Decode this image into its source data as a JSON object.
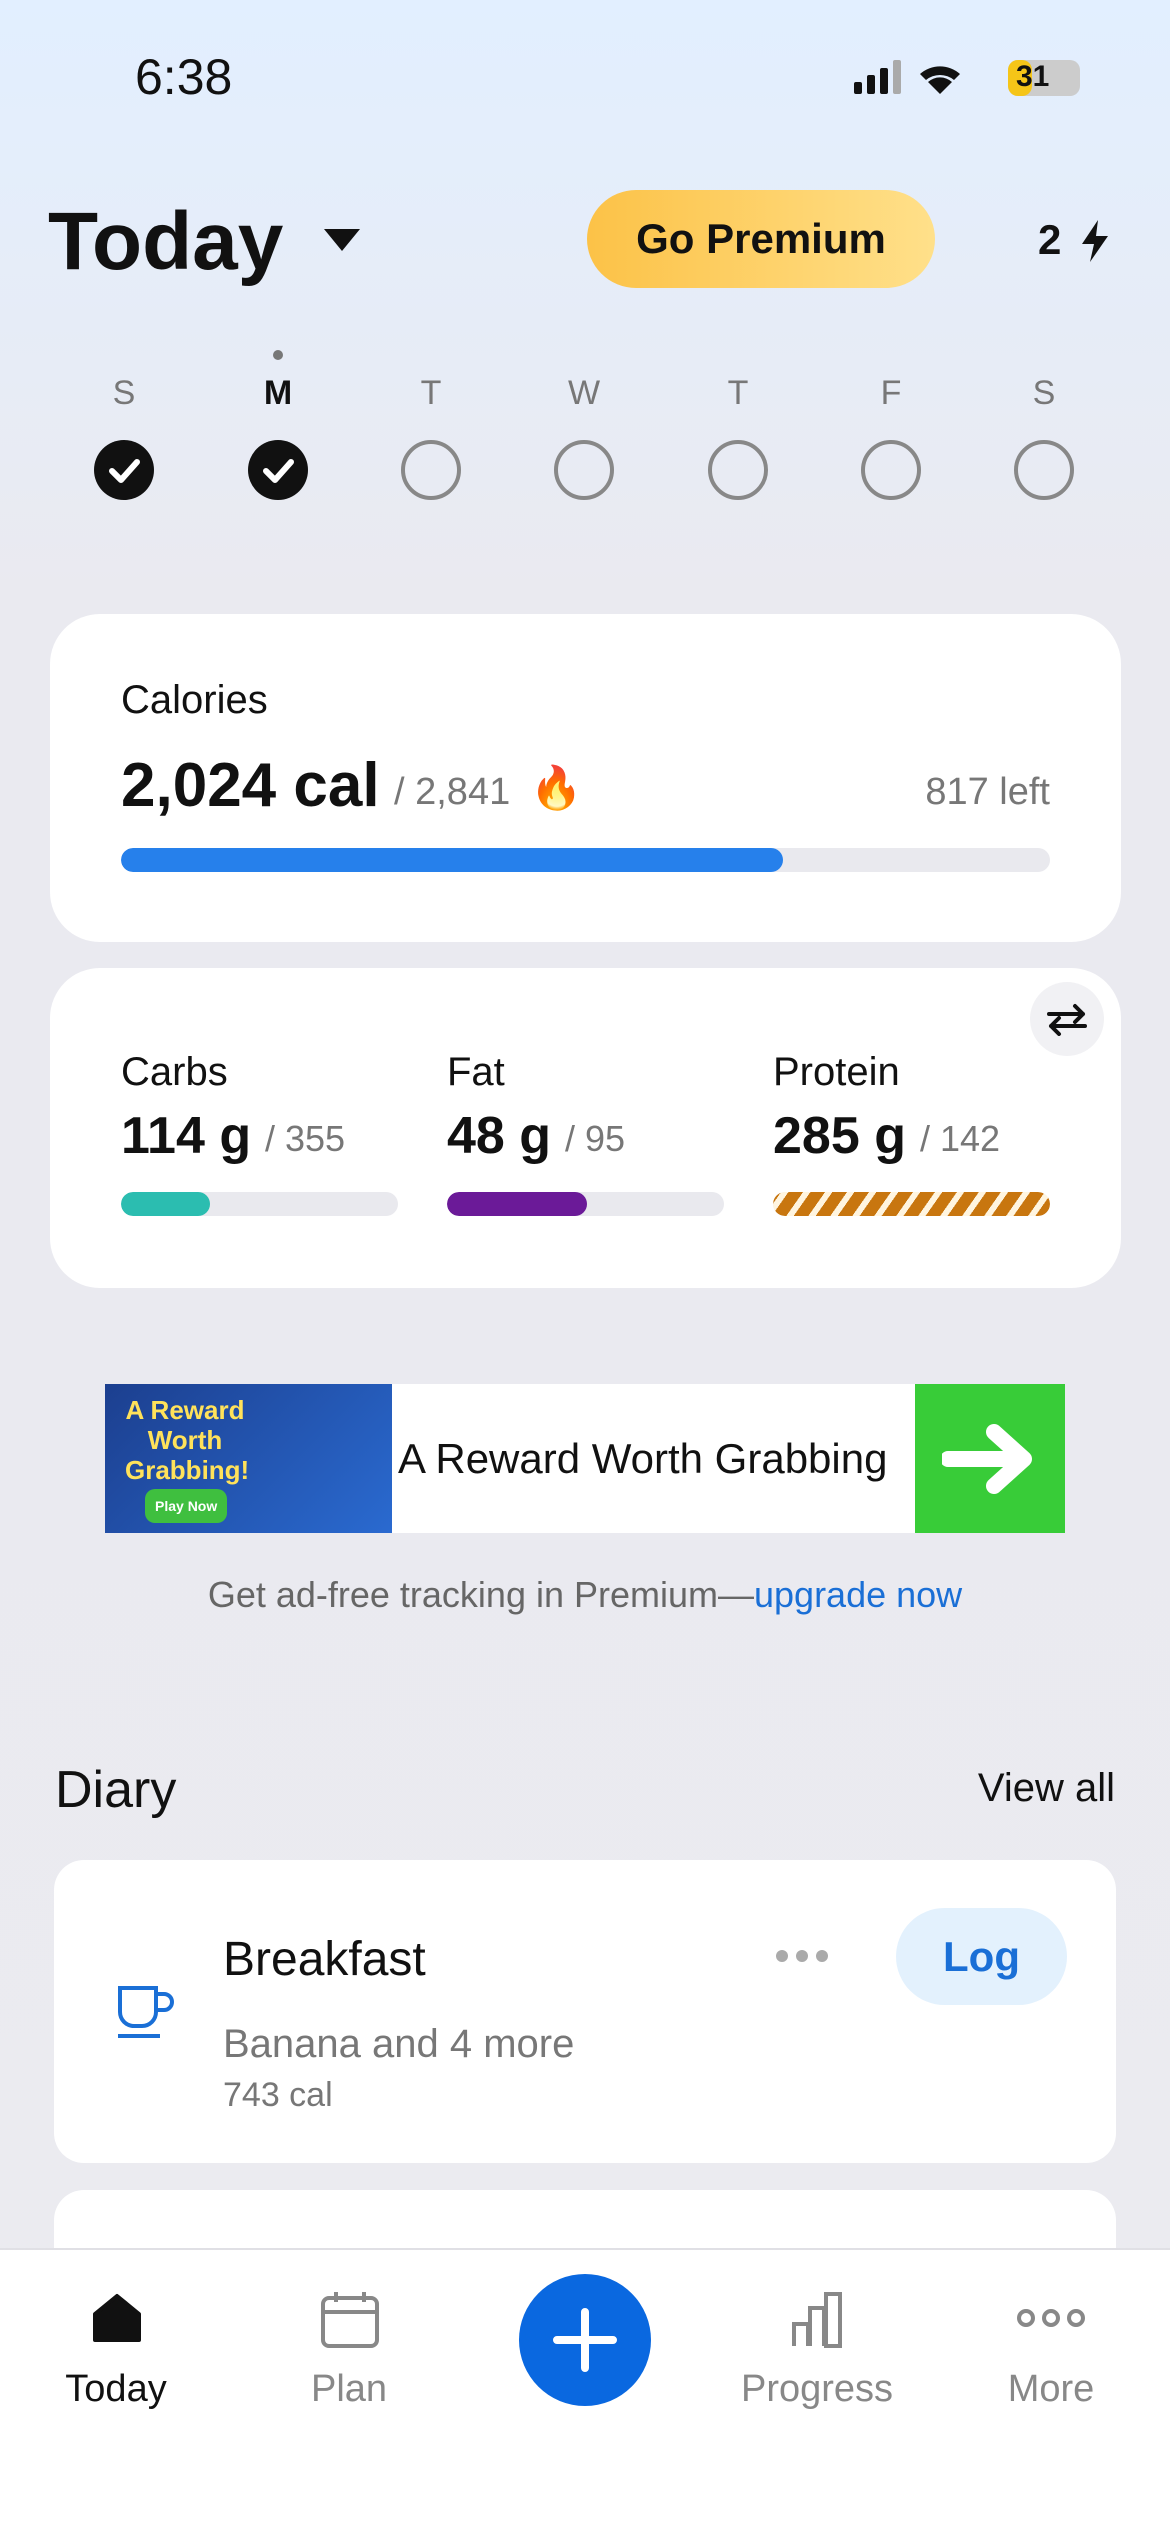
{
  "status": {
    "time": "6:38",
    "battery": "31"
  },
  "header": {
    "title": "Today",
    "premium": "Go Premium",
    "streak": "2"
  },
  "week": {
    "days": [
      "S",
      "M",
      "T",
      "W",
      "T",
      "F",
      "S"
    ],
    "done": [
      true,
      true,
      false,
      false,
      false,
      false,
      false
    ]
  },
  "calories": {
    "title": "Calories",
    "consumed": {
      "value": 2024,
      "label": "2,024 cal"
    },
    "goal": {
      "value": 2841,
      "label": "/ 2,841"
    },
    "left": "817 left",
    "color": "#2680eb"
  },
  "macros": [
    {
      "name": "Carbs",
      "consumed": {
        "value": 114,
        "label": "114 g"
      },
      "goal": {
        "value": 355,
        "label": "/ 355"
      },
      "color": "#2bbdb0"
    },
    {
      "name": "Fat",
      "consumed": {
        "value": 48,
        "label": "48 g"
      },
      "goal": {
        "value": 95,
        "label": "/ 95"
      },
      "color": "#6b1a98"
    },
    {
      "name": "Protein",
      "consumed": {
        "value": 285,
        "label": "285 g"
      },
      "goal": {
        "value": 142,
        "label": "/ 142"
      },
      "color": "#c8760f"
    }
  ],
  "ad": {
    "image_title": "A Reward Worth Grabbing!",
    "image_button": "Play Now",
    "text": "A Reward Worth Grabbing"
  },
  "upsell": {
    "text": "Get ad-free tracking in Premium—",
    "link": "upgrade now"
  },
  "diary": {
    "title": "Diary",
    "view_all": "View all",
    "meals": [
      {
        "name": "Breakfast",
        "summary": "Banana and 4 more",
        "calories": "743 cal",
        "action": "Log"
      }
    ]
  },
  "tabs": [
    "Today",
    "Plan",
    "Progress",
    "More"
  ]
}
